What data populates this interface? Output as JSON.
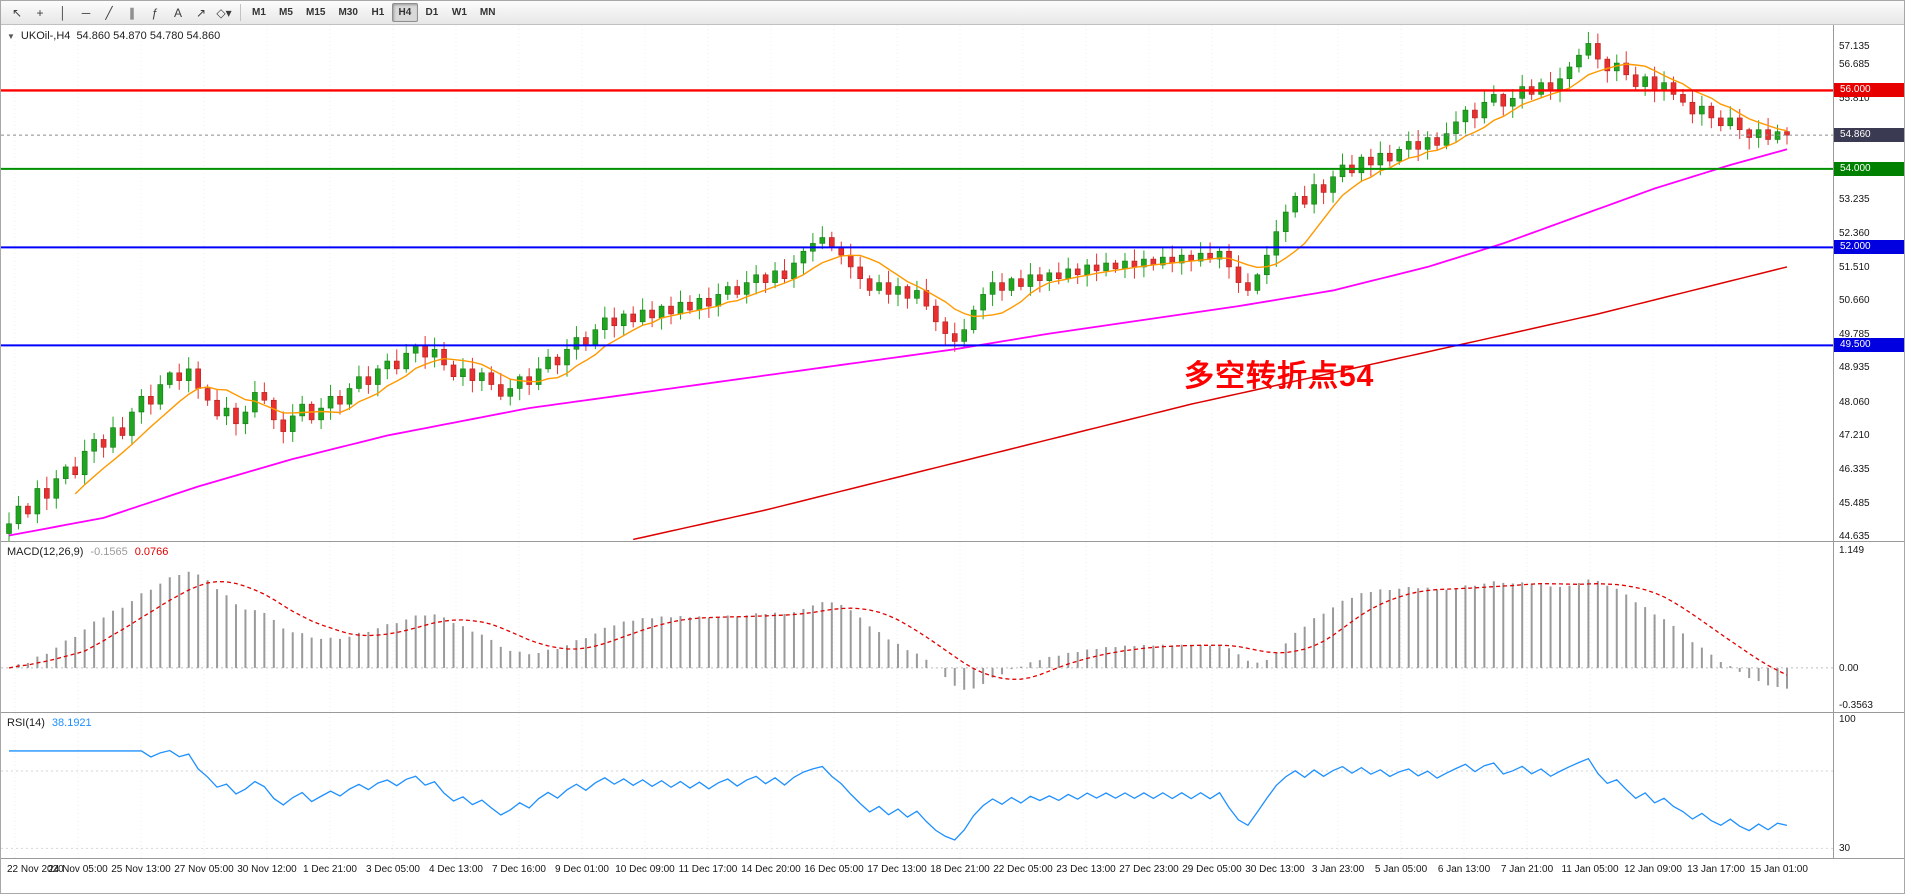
{
  "toolbar": {
    "tools": [
      {
        "name": "cursor",
        "glyph": "↖"
      },
      {
        "name": "crosshair",
        "glyph": "+"
      },
      {
        "name": "vertical-line",
        "glyph": "│"
      },
      {
        "name": "horizontal-line",
        "glyph": "─"
      },
      {
        "name": "trendline",
        "glyph": "╱"
      },
      {
        "name": "equidistant-channel",
        "glyph": "∥"
      },
      {
        "name": "fibonacci",
        "glyph": "ƒ"
      },
      {
        "name": "text",
        "glyph": "A"
      },
      {
        "name": "arrow-object",
        "glyph": "↗"
      },
      {
        "name": "shapes",
        "glyph": "◇▾"
      }
    ],
    "timeframes": [
      "M1",
      "M5",
      "M15",
      "M30",
      "H1",
      "H4",
      "D1",
      "W1",
      "MN"
    ],
    "active_timeframe": "H4"
  },
  "header": {
    "symbol": "UKOil-,H4",
    "ohlc": "54.860 54.870 54.780 54.860"
  },
  "annotation": {
    "text": "多空转折点54",
    "color": "#ff0000"
  },
  "price_axis": {
    "ticks": [
      "57.135",
      "56.685",
      "55.810",
      "53.235",
      "52.360",
      "51.510",
      "50.660",
      "49.785",
      "48.935",
      "48.060",
      "47.210",
      "46.335",
      "45.485",
      "44.635"
    ],
    "badges": [
      {
        "label": "56.000",
        "value": 56.0,
        "color": "#e60000"
      },
      {
        "label": "54.860",
        "value": 54.86,
        "color": "#3a3a52"
      },
      {
        "label": "54.000",
        "value": 54.0,
        "color": "#008000"
      },
      {
        "label": "52.000",
        "value": 52.0,
        "color": "#0000e0"
      },
      {
        "label": "49.500",
        "value": 49.5,
        "color": "#0000e0"
      }
    ]
  },
  "macd_panel": {
    "name": "MACD(12,26,9)",
    "value_main": "-0.1565",
    "value_signal": "0.0766",
    "axis": [
      {
        "label": "1.149",
        "value": 1.149
      },
      {
        "label": "0.00",
        "value": 0
      },
      {
        "label": "-0.3563",
        "value": -0.3563
      }
    ],
    "range": [
      -0.42,
      1.2
    ],
    "colors": {
      "histogram": "#9a9a9a",
      "signal": "#e00000"
    }
  },
  "rsi_panel": {
    "name": "RSI(14)",
    "value": "38.1921",
    "axis": [
      {
        "label": "100",
        "value": 100
      },
      {
        "label": "30",
        "value": 30
      }
    ],
    "range": [
      25,
      100
    ],
    "levels": [
      70,
      30
    ],
    "colors": {
      "line": "#1e90ff"
    }
  },
  "time_axis": {
    "labels": [
      "22 Nov 2020",
      "24 Nov 05:00",
      "25 Nov 13:00",
      "27 Nov 05:00",
      "30 Nov 12:00",
      "1 Dec 21:00",
      "3 Dec 05:00",
      "4 Dec 13:00",
      "7 Dec 16:00",
      "9 Dec 01:00",
      "10 Dec 09:00",
      "11 Dec 17:00",
      "14 Dec 20:00",
      "16 Dec 05:00",
      "17 Dec 13:00",
      "18 Dec 21:00",
      "22 Dec 05:00",
      "23 Dec 13:00",
      "27 Dec 23:00",
      "29 Dec 05:00",
      "30 Dec 13:00",
      "3 Jan 23:00",
      "5 Jan 05:00",
      "6 Jan 13:00",
      "7 Jan 21:00",
      "11 Jan 05:00",
      "12 Jan 09:00",
      "13 Jan 17:00",
      "15 Jan 01:00"
    ]
  },
  "chart_data": {
    "type": "candlestick",
    "symbol": "UKOil-",
    "timeframe": "H4",
    "title": "UKOil-,H4 54.860 54.870 54.780 54.860",
    "price_range": [
      44.51,
      57.67
    ],
    "first_open": 44.7,
    "closes": [
      44.95,
      45.4,
      45.2,
      45.85,
      45.6,
      46.1,
      46.4,
      46.2,
      46.8,
      47.1,
      46.9,
      47.4,
      47.2,
      47.8,
      48.2,
      48.0,
      48.5,
      48.8,
      48.6,
      48.9,
      48.4,
      48.1,
      47.7,
      47.9,
      47.5,
      47.8,
      48.3,
      48.1,
      47.6,
      47.3,
      47.7,
      48.0,
      47.6,
      47.9,
      48.2,
      48.0,
      48.4,
      48.7,
      48.5,
      48.9,
      49.1,
      48.9,
      49.3,
      49.5,
      49.2,
      49.4,
      49.0,
      48.7,
      48.9,
      48.6,
      48.8,
      48.5,
      48.2,
      48.4,
      48.7,
      48.5,
      48.9,
      49.2,
      49.0,
      49.4,
      49.7,
      49.5,
      49.9,
      50.2,
      50.0,
      50.3,
      50.1,
      50.4,
      50.2,
      50.5,
      50.3,
      50.6,
      50.4,
      50.7,
      50.5,
      50.8,
      51.0,
      50.8,
      51.1,
      51.3,
      51.1,
      51.4,
      51.2,
      51.6,
      51.9,
      52.1,
      52.25,
      52.0,
      51.8,
      51.5,
      51.2,
      50.9,
      51.1,
      50.8,
      51.0,
      50.7,
      50.9,
      50.5,
      50.1,
      49.8,
      49.6,
      49.9,
      50.4,
      50.8,
      51.1,
      50.9,
      51.2,
      51.0,
      51.3,
      51.15,
      51.35,
      51.2,
      51.45,
      51.3,
      51.55,
      51.4,
      51.6,
      51.45,
      51.65,
      51.5,
      51.7,
      51.55,
      51.75,
      51.6,
      51.8,
      51.65,
      51.85,
      51.7,
      51.9,
      51.5,
      51.1,
      50.9,
      51.3,
      51.8,
      52.4,
      52.9,
      53.3,
      53.1,
      53.6,
      53.4,
      53.8,
      54.1,
      53.9,
      54.3,
      54.1,
      54.4,
      54.2,
      54.5,
      54.7,
      54.5,
      54.8,
      54.6,
      54.9,
      55.2,
      55.5,
      55.3,
      55.7,
      55.9,
      55.6,
      55.8,
      56.1,
      55.9,
      56.2,
      56.0,
      56.3,
      56.6,
      56.9,
      57.2,
      56.8,
      56.5,
      56.7,
      56.4,
      56.1,
      56.35,
      56.0,
      56.2,
      55.9,
      55.7,
      55.4,
      55.6,
      55.3,
      55.1,
      55.3,
      55.0,
      54.8,
      55.0,
      54.75,
      54.95,
      54.86
    ],
    "colors": {
      "up": "#1fa51f",
      "down": "#e93030",
      "up_border": "#157a15",
      "down_border": "#b01f1f"
    },
    "hlines": [
      {
        "value": 56.0,
        "color": "#ff0000",
        "width": 2.4
      },
      {
        "value": 54.0,
        "color": "#009000",
        "width": 2
      },
      {
        "value": 52.0,
        "color": "#0000ff",
        "width": 2
      },
      {
        "value": 49.5,
        "color": "#0000ff",
        "width": 2
      }
    ],
    "current_price": {
      "value": 54.86,
      "color": "#8a8a8a"
    },
    "moving_averages": [
      {
        "name": "ma-fast",
        "color": "#ff9900",
        "type": "sma",
        "period": 8,
        "width": 1.4
      },
      {
        "name": "ma-mid",
        "color": "#ff00ff",
        "width": 1.8,
        "anchors": [
          [
            0,
            44.65
          ],
          [
            10,
            45.1
          ],
          [
            20,
            45.9
          ],
          [
            30,
            46.6
          ],
          [
            40,
            47.2
          ],
          [
            55,
            47.9
          ],
          [
            70,
            48.4
          ],
          [
            85,
            48.9
          ],
          [
            100,
            49.4
          ],
          [
            110,
            49.8
          ],
          [
            120,
            50.15
          ],
          [
            130,
            50.5
          ],
          [
            140,
            50.9
          ],
          [
            150,
            51.5
          ],
          [
            158,
            52.1
          ],
          [
            166,
            52.8
          ],
          [
            174,
            53.5
          ],
          [
            182,
            54.1
          ],
          [
            188,
            54.5
          ]
        ]
      },
      {
        "name": "ma-slow",
        "color": "#dd0000",
        "width": 1.5,
        "anchors": [
          [
            66,
            44.55
          ],
          [
            80,
            45.3
          ],
          [
            95,
            46.2
          ],
          [
            110,
            47.1
          ],
          [
            125,
            48.0
          ],
          [
            140,
            48.8
          ],
          [
            155,
            49.6
          ],
          [
            168,
            50.3
          ],
          [
            178,
            50.9
          ],
          [
            188,
            51.5
          ]
        ]
      }
    ]
  }
}
